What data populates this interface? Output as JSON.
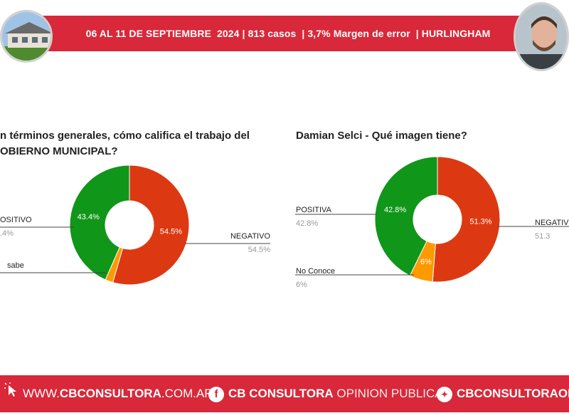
{
  "header": {
    "text": "06 AL 11 DE SEPTIEMBRE  2024 | 813 casos  | 3,7% Margen de error  | HURLINGHAM"
  },
  "charts": [
    {
      "title_line1": "n términos generales, cómo califica el trabajo del",
      "title_line2": "OBIERNO MUNICIPAL?"
    },
    {
      "title_line1": "Damian Selci - Qué imagen tiene?",
      "title_line2": ""
    }
  ],
  "chart_data": [
    {
      "type": "pie",
      "title": "n términos generales, cómo califica el trabajo del OBIERNO MUNICIPAL?",
      "slices": [
        {
          "label": "NEGATIVO",
          "value": 54.5,
          "value_label": "54.5%",
          "outside_pct": "54.5%",
          "color": "#dc3912"
        },
        {
          "label": "sabe",
          "value": 2.1,
          "value_label": "",
          "outside_pct": "",
          "color": "#ff9900"
        },
        {
          "label": "OSITIVO",
          "value": 43.4,
          "value_label": "43.4%",
          "outside_pct": ".4%",
          "color": "#109618"
        }
      ]
    },
    {
      "type": "pie",
      "title": "Damian Selci - Qué imagen tiene?",
      "slices": [
        {
          "label": "NEGATIV",
          "value": 51.3,
          "value_label": "51.3%",
          "outside_pct": "51.3",
          "color": "#dc3912"
        },
        {
          "label": "No Conoce",
          "value": 6,
          "value_label": "6%",
          "outside_pct": "6%",
          "color": "#ff9900"
        },
        {
          "label": "POSITIVA",
          "value": 42.8,
          "value_label": "42.8%",
          "outside_pct": "42.8%",
          "color": "#109618"
        }
      ]
    }
  ],
  "footer": {
    "web_prefix": "WWW.",
    "web_bold": "CBCONSULTORA",
    "web_suffix": ".COM.AR",
    "fb_bold": "CB CONSULTORA",
    "fb_light": " OPINION PUBLICA",
    "tw_bold": "CBCONSULTORAOK"
  },
  "colors": {
    "brand": "#d8283a",
    "positive": "#109618",
    "negative": "#dc3912",
    "neutral": "#ff9900"
  },
  "icons": [
    "building-photo",
    "person-photo",
    "cursor-click-icon",
    "facebook-icon",
    "twitter-icon"
  ]
}
